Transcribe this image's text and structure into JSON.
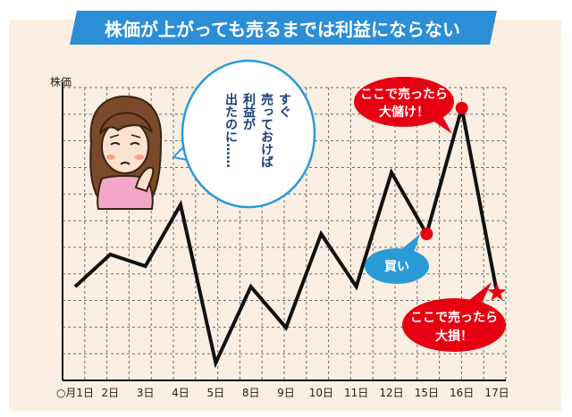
{
  "banner": {
    "title": "株価が上がっても売るまでは利益にならない"
  },
  "chart_data": {
    "type": "line",
    "title": "株価が上がっても売るまでは利益にならない",
    "ylabel": "株価",
    "xlabel": "",
    "categories": [
      "○月1日",
      "2日",
      "3日",
      "4日",
      "5日",
      "8日",
      "9日",
      "10日",
      "11日",
      "12日",
      "15日",
      "16日",
      "17日"
    ],
    "values": [
      3.2,
      4.3,
      3.9,
      6.0,
      0.6,
      3.2,
      1.8,
      5.0,
      3.2,
      7.1,
      5.0,
      9.3,
      3.0
    ],
    "ylim": [
      0,
      10
    ],
    "grid": true,
    "line_color": "#111111",
    "highlight_color": "#e60012"
  },
  "annotations": {
    "buy_label": "買い",
    "sell_big_profit": [
      "ここで売ったら",
      "大儲け！"
    ],
    "sell_big_loss": [
      "ここで売ったら",
      "大損！"
    ],
    "thought_lines": [
      "すぐ",
      "売っておけば",
      "利益が",
      "出たのに……"
    ]
  },
  "colors": {
    "banner_bg": "#2b8ed6",
    "chart_bg": "#fbeee2",
    "grid": "#6e6e6e",
    "red": "#e60012",
    "blue": "#2b9bd8",
    "bubble_border": "#2b9bd8"
  }
}
